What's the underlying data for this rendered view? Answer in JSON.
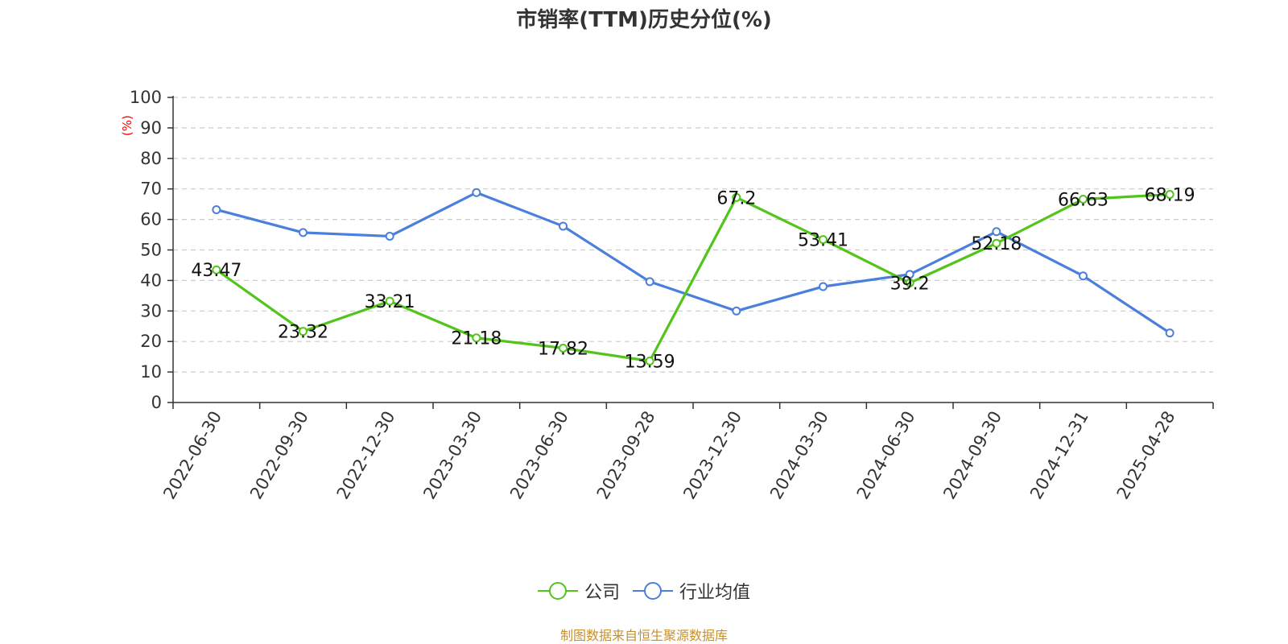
{
  "chart_data": {
    "type": "line",
    "title": "市销率(TTM)历史分位(%)",
    "ylabel": "(%)",
    "ylim": [
      0,
      100
    ],
    "yticks": [
      0,
      10,
      20,
      30,
      40,
      50,
      60,
      70,
      80,
      90,
      100
    ],
    "grid": true,
    "legend_position": "bottom-center",
    "categories": [
      "2022-06-30",
      "2022-09-30",
      "2022-12-30",
      "2023-03-30",
      "2023-06-30",
      "2023-09-28",
      "2023-12-30",
      "2024-03-30",
      "2024-06-30",
      "2024-09-30",
      "2024-12-31",
      "2025-04-28"
    ],
    "series": [
      {
        "name": "公司",
        "color": "#52c41a",
        "values": [
          43.47,
          23.32,
          33.21,
          21.18,
          17.82,
          13.59,
          67.2,
          53.41,
          39.2,
          52.18,
          66.63,
          68.19
        ],
        "labels": [
          "43.47",
          "23.32",
          "33.21",
          "21.18",
          "17.82",
          "13.59",
          "67.2",
          "53.41",
          "39.2",
          "52.18",
          "66.63",
          "68.19"
        ]
      },
      {
        "name": "行业均值",
        "color": "#4a7fdc",
        "values": [
          63.2,
          55.7,
          54.5,
          68.8,
          57.8,
          39.6,
          30.0,
          38.0,
          42.0,
          56.0,
          41.5,
          22.8
        ]
      }
    ]
  },
  "source": "制图数据来自恒生聚源数据库"
}
